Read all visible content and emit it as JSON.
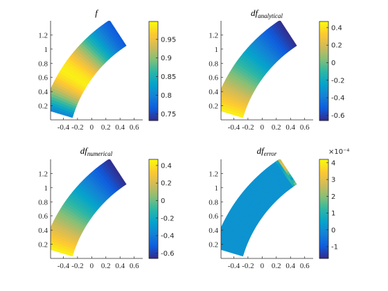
{
  "chart_data": [
    {
      "type": "heatmap",
      "title": "f",
      "title_sub": "",
      "x_ticks": [
        "-0.4",
        "-0.2",
        "0",
        "0.2",
        "0.4",
        "0.6"
      ],
      "y_ticks": [
        "0.2",
        "0.4",
        "0.6",
        "0.8",
        "1",
        "1.2"
      ],
      "xlim": [
        -0.58,
        0.72
      ],
      "ylim": [
        0.0,
        1.4
      ],
      "colorbar": {
        "ticks": [
          "0.75",
          "0.8",
          "0.85",
          "0.9",
          "0.95"
        ],
        "tick_values": [
          0.75,
          0.8,
          0.85,
          0.9,
          0.95
        ],
        "range": [
          0.732,
          0.998
        ],
        "exponent": ""
      },
      "field": "f",
      "values_range": [
        0.735,
        0.99
      ]
    },
    {
      "type": "heatmap",
      "title": "df",
      "title_sub": "analytical",
      "x_ticks": [
        "-0.4",
        "-0.2",
        "0",
        "0.2",
        "0.4",
        "0.6"
      ],
      "y_ticks": [
        "0.2",
        "0.4",
        "0.6",
        "0.8",
        "1",
        "1.2"
      ],
      "xlim": [
        -0.58,
        0.72
      ],
      "ylim": [
        0.0,
        1.4
      ],
      "colorbar": {
        "ticks": [
          "0.4",
          "0.2",
          "0",
          "-0.2",
          "-0.4",
          "-0.6"
        ],
        "tick_values": [
          0.4,
          0.2,
          0,
          -0.2,
          -0.4,
          -0.6
        ],
        "range": [
          -0.66,
          0.47
        ],
        "exponent": ""
      },
      "field": "df",
      "values_range": [
        -0.65,
        0.45
      ]
    },
    {
      "type": "heatmap",
      "title": "df",
      "title_sub": "numerical",
      "x_ticks": [
        "-0.4",
        "-0.2",
        "0",
        "0.2",
        "0.4",
        "0.6"
      ],
      "y_ticks": [
        "0.2",
        "0.4",
        "0.6",
        "0.8",
        "1",
        "1.2"
      ],
      "xlim": [
        -0.58,
        0.72
      ],
      "ylim": [
        0.0,
        1.4
      ],
      "colorbar": {
        "ticks": [
          "0.4",
          "0.2",
          "0",
          "-0.2",
          "-0.4",
          "-0.6"
        ],
        "tick_values": [
          0.4,
          0.2,
          0,
          -0.2,
          -0.4,
          -0.6
        ],
        "range": [
          -0.66,
          0.47
        ],
        "exponent": ""
      },
      "field": "df",
      "values_range": [
        -0.65,
        0.45
      ]
    },
    {
      "type": "heatmap",
      "title": "df",
      "title_sub": "error",
      "x_ticks": [
        "-0.4",
        "-0.2",
        "0",
        "0.2",
        "0.4",
        "0.6"
      ],
      "y_ticks": [
        "0.2",
        "0.4",
        "0.6",
        "0.8",
        "1",
        "1.2"
      ],
      "xlim": [
        -0.58,
        0.72
      ],
      "ylim": [
        0.0,
        1.4
      ],
      "colorbar": {
        "ticks": [
          "4",
          "3",
          "2",
          "1",
          "0",
          "-1"
        ],
        "tick_values": [
          4,
          3,
          2,
          1,
          0,
          -1
        ],
        "range": [
          -1.7,
          4.2
        ],
        "exponent": "×10⁻⁴"
      },
      "field": "error",
      "values_range": [
        -1.5,
        4.0
      ]
    }
  ],
  "colors": {
    "colormap": "parula",
    "parula_stops": [
      "#352a87",
      "#0f5cdd",
      "#1481d6",
      "#06a4ca",
      "#2eb7a4",
      "#87bf77",
      "#d1bb59",
      "#fec832",
      "#f9fb0e"
    ],
    "axis": "#262626"
  }
}
